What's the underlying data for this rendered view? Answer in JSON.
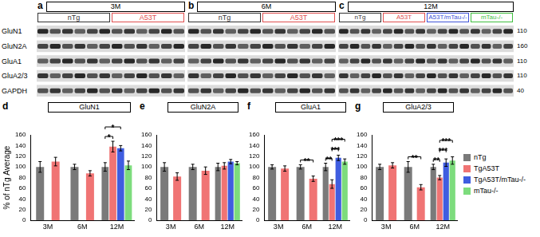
{
  "blots": {
    "rows": [
      "GluN1",
      "GluN2A",
      "GluA1",
      "GluA2/3",
      "GAPDH"
    ],
    "mw": [
      110,
      160,
      110,
      110,
      40
    ],
    "panels": [
      {
        "letter": "a",
        "title": "3M",
        "groups": [
          {
            "name": "nTg",
            "color": "#333333"
          },
          {
            "name": "A53T",
            "color": "#e05050"
          }
        ]
      },
      {
        "letter": "b",
        "title": "6M",
        "groups": [
          {
            "name": "nTg",
            "color": "#333333"
          },
          {
            "name": "A53T",
            "color": "#e05050"
          }
        ]
      },
      {
        "letter": "c",
        "title": "12M",
        "groups": [
          {
            "name": "nTg",
            "color": "#333333"
          },
          {
            "name": "A53T",
            "color": "#e05050"
          },
          {
            "name": "A53T/mTau-/-",
            "color": "#4055d8"
          },
          {
            "name": "mTau-/-",
            "color": "#3fbf3f"
          }
        ]
      }
    ]
  },
  "chart_data": [
    {
      "letter": "d",
      "type": "bar",
      "title": "GluN1",
      "y_label": "% of nTg Average",
      "categories": [
        "3M",
        "6M",
        "12M"
      ],
      "series": [
        {
          "name": "nTg",
          "color": "#7a7a7a",
          "values": [
            100,
            100,
            100
          ],
          "errors": [
            10,
            5,
            8
          ]
        },
        {
          "name": "TgA53T",
          "color": "#f07474",
          "values": [
            110,
            88,
            138
          ],
          "errors": [
            8,
            5,
            10
          ]
        },
        {
          "name": "TgA53T/mTau-/-",
          "color": "#3f5de0",
          "values": [
            null,
            null,
            135
          ],
          "errors": [
            null,
            null,
            5
          ]
        },
        {
          "name": "mTau-/-",
          "color": "#7ddc7d",
          "values": [
            null,
            null,
            103
          ],
          "errors": [
            null,
            null,
            8
          ]
        }
      ],
      "ylim": [
        0,
        160
      ],
      "yticks": [
        0,
        20,
        40,
        60,
        80,
        100,
        120,
        140,
        160
      ],
      "grid": false,
      "annotations": [
        {
          "text": "*",
          "category": "12M",
          "from": "nTg",
          "to": "TgA53T"
        },
        {
          "text": "*",
          "category": "12M",
          "from": "nTg",
          "to": "TgA53T/mTau-/-"
        }
      ]
    },
    {
      "letter": "e",
      "type": "bar",
      "title": "GluN2A",
      "categories": [
        "3M",
        "6M",
        "12M"
      ],
      "series": [
        {
          "name": "nTg",
          "color": "#7a7a7a",
          "values": [
            100,
            100,
            100
          ],
          "errors": [
            8,
            5,
            7
          ]
        },
        {
          "name": "TgA53T",
          "color": "#f07474",
          "values": [
            82,
            93,
            102
          ],
          "errors": [
            7,
            7,
            6
          ]
        },
        {
          "name": "TgA53T/mTau-/-",
          "color": "#3f5de0",
          "values": [
            null,
            null,
            110
          ],
          "errors": [
            null,
            null,
            4
          ]
        },
        {
          "name": "mTau-/-",
          "color": "#7ddc7d",
          "values": [
            null,
            null,
            107
          ],
          "errors": [
            null,
            null,
            3
          ]
        }
      ],
      "ylim": [
        0,
        160
      ],
      "yticks": [
        0,
        20,
        40,
        60,
        80,
        100,
        120,
        140,
        160
      ],
      "grid": false,
      "annotations": []
    },
    {
      "letter": "f",
      "type": "bar",
      "title": "GluA1",
      "categories": [
        "3M",
        "6M",
        "12M"
      ],
      "series": [
        {
          "name": "nTg",
          "color": "#7a7a7a",
          "values": [
            100,
            100,
            100
          ],
          "errors": [
            4,
            4,
            7
          ]
        },
        {
          "name": "TgA53T",
          "color": "#f07474",
          "values": [
            97,
            78,
            68
          ],
          "errors": [
            5,
            5,
            8
          ]
        },
        {
          "name": "TgA53T/mTau-/-",
          "color": "#3f5de0",
          "values": [
            null,
            null,
            117
          ],
          "errors": [
            null,
            null,
            5
          ]
        },
        {
          "name": "mTau-/-",
          "color": "#7ddc7d",
          "values": [
            null,
            null,
            110
          ],
          "errors": [
            null,
            null,
            5
          ]
        }
      ],
      "ylim": [
        0,
        160
      ],
      "yticks": [
        0,
        20,
        40,
        60,
        80,
        100,
        120,
        140,
        160
      ],
      "grid": false,
      "annotations": [
        {
          "text": "**",
          "category": "6M",
          "from": "nTg",
          "to": "TgA53T"
        },
        {
          "text": "**",
          "category": "12M",
          "from": "nTg",
          "to": "TgA53T"
        },
        {
          "text": "***",
          "category": "12M",
          "from": "TgA53T",
          "to": "TgA53T/mTau-/-"
        },
        {
          "text": "***",
          "category": "12M",
          "from": "TgA53T",
          "to": "mTau-/-"
        }
      ]
    },
    {
      "letter": "g",
      "type": "bar",
      "title": "GluA2/3",
      "categories": [
        "3M",
        "6M",
        "12M"
      ],
      "series": [
        {
          "name": "nTg",
          "color": "#7a7a7a",
          "values": [
            100,
            100,
            100
          ],
          "errors": [
            5,
            10,
            5
          ]
        },
        {
          "name": "TgA53T",
          "color": "#f07474",
          "values": [
            103,
            62,
            80
          ],
          "errors": [
            5,
            5,
            4
          ]
        },
        {
          "name": "TgA53T/mTau-/-",
          "color": "#3f5de0",
          "values": [
            null,
            null,
            108
          ],
          "errors": [
            null,
            null,
            7
          ]
        },
        {
          "name": "mTau-/-",
          "color": "#7ddc7d",
          "values": [
            null,
            null,
            112
          ],
          "errors": [
            null,
            null,
            7
          ]
        }
      ],
      "ylim": [
        0,
        160
      ],
      "yticks": [
        0,
        20,
        40,
        60,
        80,
        100,
        120,
        140,
        160
      ],
      "grid": false,
      "legend": "right",
      "annotations": [
        {
          "text": "**",
          "category": "6M",
          "from": "nTg",
          "to": "TgA53T"
        },
        {
          "text": "**",
          "category": "12M",
          "from": "nTg",
          "to": "TgA53T"
        },
        {
          "text": "***",
          "category": "12M",
          "from": "TgA53T",
          "to": "TgA53T/mTau-/-"
        },
        {
          "text": "***",
          "category": "12M",
          "from": "TgA53T",
          "to": "mTau-/-"
        }
      ]
    }
  ]
}
